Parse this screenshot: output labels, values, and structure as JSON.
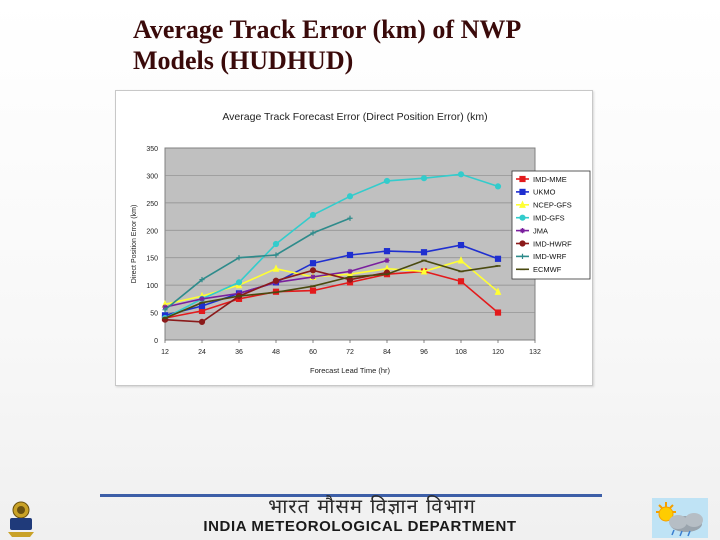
{
  "slide": {
    "title_line1": "Average Track Error (km) of NWP",
    "title_line2": "Models (HUDHUD)"
  },
  "footer": {
    "hindi_text": "भारत मौसम विज्ञान विभाग",
    "english_text": "INDIA METEOROLOGICAL DEPARTMENT",
    "line_color": "#3d5fa8",
    "left_icon": "emblem-icon",
    "right_icon": "weather-sun-cloud-icon"
  },
  "chart_data": {
    "type": "line",
    "title": "Average Track Forecast Error (Direct Position Error) (km)",
    "xlabel": "Forecast Lead Time (hr)",
    "ylabel": "Direct Position Error (km)",
    "x": [
      12,
      24,
      36,
      48,
      60,
      72,
      84,
      96,
      108,
      120
    ],
    "x_ticks": [
      "12",
      "24",
      "36",
      "48",
      "60",
      "72",
      "84",
      "96",
      "108",
      "120",
      "132"
    ],
    "xlim": [
      12,
      132
    ],
    "y_ticks": [
      "0",
      "50",
      "100",
      "150",
      "200",
      "250",
      "300",
      "350"
    ],
    "ylim": [
      0,
      350
    ],
    "grid": "horizontal",
    "plot_background": "#c0c0c0",
    "legend_position": "right",
    "series": [
      {
        "name": "IMD-MME",
        "color": "#e31a1c",
        "marker": "square",
        "values": [
          40,
          53,
          75,
          88,
          90,
          105,
          120,
          125,
          107,
          50
        ]
      },
      {
        "name": "UKMO",
        "color": "#1f2fd0",
        "marker": "square",
        "values": [
          45,
          62,
          85,
          105,
          140,
          155,
          162,
          160,
          173,
          148
        ]
      },
      {
        "name": "NCEP-GFS",
        "color": "#ffff33",
        "marker": "triangle",
        "values": [
          65,
          80,
          100,
          130,
          115,
          120,
          130,
          125,
          145,
          88
        ]
      },
      {
        "name": "IMD-GFS",
        "color": "#33cccc",
        "marker": "circle",
        "values": [
          40,
          75,
          105,
          175,
          228,
          262,
          290,
          295,
          302,
          280
        ]
      },
      {
        "name": "JMA",
        "color": "#7a1f9e",
        "marker": "star",
        "values": [
          60,
          75,
          85,
          105,
          115,
          125,
          145,
          null,
          null,
          null
        ]
      },
      {
        "name": "IMD-HWRF",
        "color": "#8b1a1a",
        "marker": "circle",
        "values": [
          37,
          33,
          80,
          108,
          127,
          110,
          123,
          null,
          null,
          null
        ]
      },
      {
        "name": "IMD-WRF",
        "color": "#2e8b8b",
        "marker": "plus",
        "values": [
          55,
          110,
          150,
          155,
          195,
          222,
          null,
          null,
          null,
          null
        ]
      },
      {
        "name": "ECMWF",
        "color": "#4a4a10",
        "marker": "dash",
        "values": [
          40,
          68,
          80,
          87,
          98,
          115,
          120,
          145,
          125,
          135
        ]
      }
    ]
  }
}
